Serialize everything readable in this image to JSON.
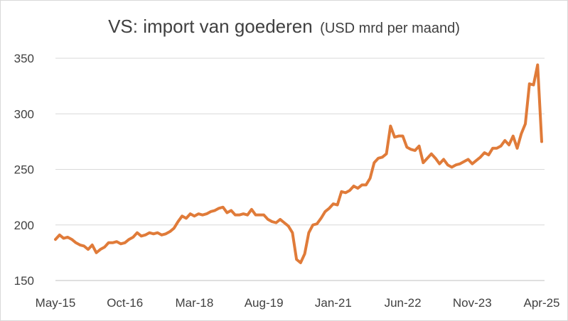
{
  "chart_data": {
    "type": "line",
    "title": "VS: import van goederen",
    "subtitle": "(USD mrd per maand)",
    "xlabel": "",
    "ylabel": "",
    "ylim": [
      150,
      350
    ],
    "yticks": [
      "150",
      "200",
      "250",
      "300",
      "350"
    ],
    "xticks": [
      "May-15",
      "Oct-16",
      "Mar-18",
      "Aug-19",
      "Jan-21",
      "Jun-22",
      "Nov-23",
      "Apr-25"
    ],
    "grid": "horizontal",
    "legend": "none",
    "colors": {
      "line": "#E07B39",
      "grid": "#d9d9d9",
      "axis": "#bfbfbf",
      "text": "#404040"
    },
    "series": [
      {
        "values": [
          187,
          191,
          188,
          189,
          187,
          184,
          182,
          181,
          178,
          182,
          175,
          178,
          180,
          184,
          184,
          185,
          183,
          184,
          187,
          189,
          193,
          190,
          191,
          193,
          192,
          193,
          191,
          192,
          194,
          197,
          203,
          208,
          206,
          210,
          208,
          210,
          209,
          210,
          212,
          213,
          215,
          216,
          211,
          213,
          209,
          209,
          210,
          209,
          214,
          209,
          209,
          209,
          205,
          203,
          202,
          205,
          202,
          199,
          193,
          169,
          166,
          174,
          193,
          200,
          201,
          206,
          212,
          215,
          219,
          218,
          230,
          229,
          231,
          235,
          233,
          236,
          236,
          242,
          256,
          260,
          261,
          264,
          289,
          279,
          280,
          280,
          270,
          268,
          267,
          271,
          256,
          260,
          264,
          260,
          255,
          259,
          254,
          252,
          254,
          255,
          257,
          259,
          255,
          258,
          261,
          265,
          263,
          269,
          269,
          271,
          276,
          272,
          280,
          269,
          282,
          291,
          327,
          326,
          344,
          275
        ]
      }
    ]
  }
}
